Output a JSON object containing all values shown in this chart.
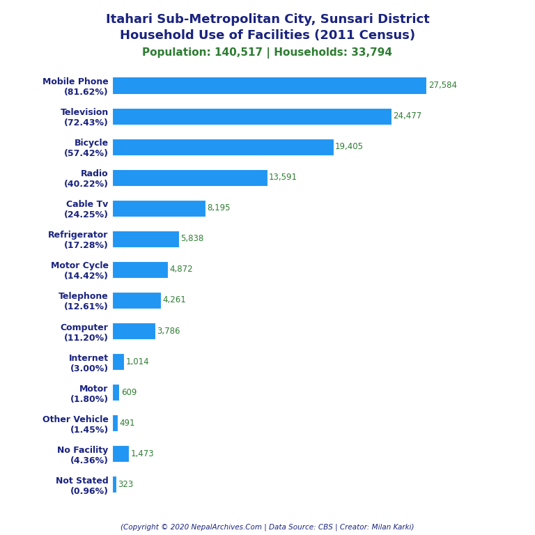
{
  "title_line1": "Itahari Sub-Metropolitan City, Sunsari District",
  "title_line2": "Household Use of Facilities (2011 Census)",
  "subtitle": "Population: 140,517 | Households: 33,794",
  "title_color": "#1a237e",
  "subtitle_color": "#2e7d32",
  "footer": "(Copyright © 2020 NepalArchives.Com | Data Source: CBS | Creator: Milan Karki)",
  "categories": [
    "Mobile Phone\n(81.62%)",
    "Television\n(72.43%)",
    "Bicycle\n(57.42%)",
    "Radio\n(40.22%)",
    "Cable Tv\n(24.25%)",
    "Refrigerator\n(17.28%)",
    "Motor Cycle\n(14.42%)",
    "Telephone\n(12.61%)",
    "Computer\n(11.20%)",
    "Internet\n(3.00%)",
    "Motor\n(1.80%)",
    "Other Vehicle\n(1.45%)",
    "No Facility\n(4.36%)",
    "Not Stated\n(0.96%)"
  ],
  "values": [
    27584,
    24477,
    19405,
    13591,
    8195,
    5838,
    4872,
    4261,
    3786,
    1014,
    609,
    491,
    1473,
    323
  ],
  "value_labels": [
    "27,584",
    "24,477",
    "19,405",
    "13,591",
    "8,195",
    "5,838",
    "4,872",
    "4,261",
    "3,786",
    "1,014",
    "609",
    "491",
    "1,473",
    "323"
  ],
  "bar_color": "#2196f3",
  "value_color": "#2e7d32",
  "background_color": "#ffffff",
  "bar_height": 0.55,
  "xlim": [
    0,
    31000
  ],
  "figsize": [
    7.68,
    7.68
  ],
  "dpi": 100,
  "label_fontsize": 9.0,
  "value_fontsize": 8.5,
  "title_fontsize": 13,
  "subtitle_fontsize": 11
}
